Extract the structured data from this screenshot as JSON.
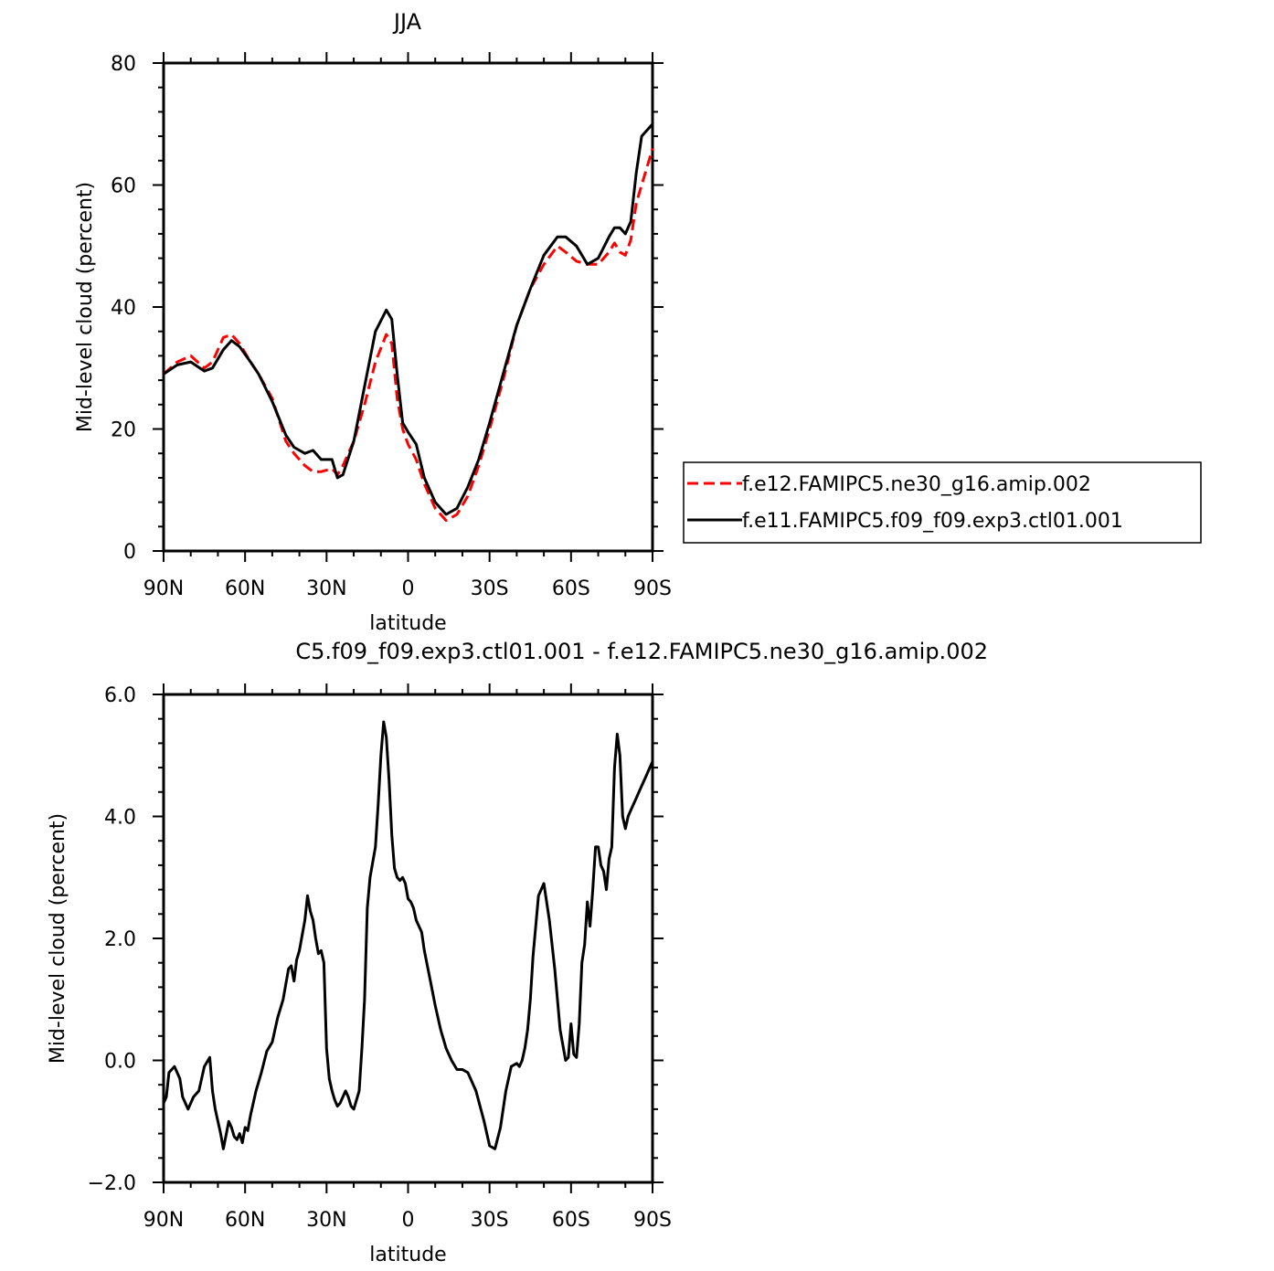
{
  "chart_data": [
    {
      "type": "line",
      "title": "JJA",
      "xlabel": "latitude",
      "ylabel": "Mid-level cloud (percent)",
      "xlim": [
        90,
        -90
      ],
      "ylim": [
        0,
        80
      ],
      "x_ticks": [
        90,
        60,
        30,
        0,
        -30,
        -60,
        -90
      ],
      "x_tick_labels": [
        "90N",
        "60N",
        "30N",
        "0",
        "30S",
        "60S",
        "90S"
      ],
      "y_ticks": [
        0,
        20,
        40,
        60,
        80
      ],
      "y_tick_labels": [
        "0",
        "20",
        "40",
        "60",
        "80"
      ],
      "legend_position": "right",
      "x": [
        90,
        85,
        80,
        75,
        72,
        68,
        65,
        62,
        58,
        55,
        50,
        45,
        42,
        38,
        35,
        32,
        28,
        26,
        24,
        20,
        16,
        12,
        8,
        6,
        4,
        2,
        0,
        -3,
        -6,
        -10,
        -14,
        -18,
        -22,
        -26,
        -30,
        -35,
        -40,
        -45,
        -50,
        -55,
        -58,
        -62,
        -66,
        -70,
        -74,
        -76,
        -78,
        -80,
        -82,
        -84,
        -86,
        -88,
        -90
      ],
      "series": [
        {
          "name": "f.e12.FAMIPC5.ne30_g16.amip.002",
          "color": "#ff0000",
          "dash": "dashed",
          "values": [
            29,
            31,
            32,
            30,
            31,
            35,
            35.5,
            34,
            31,
            29,
            25,
            18,
            16,
            14,
            13,
            13,
            13.5,
            12.5,
            14,
            18,
            24,
            31,
            35.5,
            34,
            25,
            20,
            17.5,
            15,
            11,
            7,
            5,
            6,
            9,
            14,
            20,
            28,
            37,
            43,
            47,
            50,
            49,
            47.5,
            47,
            47,
            49,
            50.5,
            49,
            48.5,
            51,
            57,
            60,
            63,
            66
          ]
        },
        {
          "name": "f.e11.FAMIPC5.f09_f09.exp3.ctl01.001",
          "color": "#000000",
          "dash": "solid",
          "values": [
            29,
            30.5,
            31,
            29.5,
            30,
            33,
            34.5,
            33.5,
            31,
            29,
            24.5,
            19,
            17,
            16,
            16.5,
            15,
            15,
            12,
            12.5,
            18,
            27,
            36,
            39.5,
            38,
            29,
            21,
            19.5,
            17.5,
            12,
            8,
            6,
            7,
            10.5,
            15,
            21,
            29,
            37,
            43,
            48.5,
            51.5,
            51.5,
            50,
            47,
            48,
            51.5,
            53,
            53,
            52,
            54,
            62,
            68,
            69,
            70
          ]
        }
      ]
    },
    {
      "type": "line",
      "title": "C5.f09_f09.exp3.ctl01.001 - f.e12.FAMIPC5.ne30_g16.amip.002",
      "xlabel": "latitude",
      "ylabel": "Mid-level cloud (percent)",
      "xlim": [
        90,
        -90
      ],
      "ylim": [
        -2,
        6
      ],
      "x_ticks": [
        90,
        60,
        30,
        0,
        -30,
        -60,
        -90
      ],
      "x_tick_labels": [
        "90N",
        "60N",
        "30N",
        "0",
        "30S",
        "60S",
        "90S"
      ],
      "y_ticks": [
        -2,
        0,
        2,
        4,
        6
      ],
      "y_tick_labels": [
        "−2.0",
        "0.0",
        "2.0",
        "4.0",
        "6.0"
      ],
      "x": [
        90,
        89,
        88,
        86,
        84,
        83,
        81,
        79,
        77,
        75,
        73,
        72,
        71,
        69,
        68,
        66,
        65,
        64,
        63,
        62,
        61,
        60,
        59,
        58,
        56,
        54,
        52,
        50,
        48,
        46,
        44,
        43,
        42,
        41,
        40,
        38,
        37,
        36,
        35,
        34,
        33,
        32,
        31,
        30,
        29,
        28,
        27,
        26,
        25,
        23,
        22,
        21,
        20,
        18,
        17,
        16,
        15,
        14,
        12,
        11,
        10,
        9,
        8,
        7,
        6,
        5,
        4,
        3,
        2,
        1,
        0,
        -1,
        -2,
        -3,
        -4,
        -5,
        -6,
        -8,
        -10,
        -12,
        -14,
        -16,
        -18,
        -20,
        -22,
        -25,
        -28,
        -30,
        -32,
        -34,
        -36,
        -38,
        -40,
        -41,
        -42,
        -43,
        -44,
        -45,
        -46,
        -48,
        -50,
        -52,
        -54,
        -56,
        -58,
        -59,
        -60,
        -61,
        -62,
        -63,
        -64,
        -65,
        -66,
        -67,
        -68,
        -69,
        -70,
        -71,
        -72,
        -73,
        -74,
        -75,
        -76,
        -77,
        -78,
        -79,
        -80,
        -81,
        -82,
        -83,
        -84,
        -85,
        -86,
        -87,
        -88,
        -89,
        -90
      ],
      "series": [
        {
          "name": "",
          "color": "#000000",
          "dash": "solid",
          "values": [
            -0.7,
            -0.6,
            -0.2,
            -0.1,
            -0.3,
            -0.6,
            -0.8,
            -0.6,
            -0.5,
            -0.1,
            0.05,
            -0.5,
            -0.8,
            -1.2,
            -1.45,
            -1.0,
            -1.1,
            -1.25,
            -1.3,
            -1.2,
            -1.35,
            -1.1,
            -1.15,
            -0.9,
            -0.5,
            -0.2,
            0.15,
            0.3,
            0.7,
            1.0,
            1.5,
            1.55,
            1.3,
            1.65,
            1.8,
            2.3,
            2.7,
            2.45,
            2.3,
            2.0,
            1.75,
            1.8,
            1.6,
            0.2,
            -0.3,
            -0.5,
            -0.65,
            -0.75,
            -0.7,
            -0.5,
            -0.6,
            -0.75,
            -0.8,
            -0.5,
            0.2,
            1.0,
            2.5,
            3.0,
            3.5,
            4.2,
            5.0,
            5.55,
            5.3,
            4.6,
            3.7,
            3.15,
            3.0,
            2.95,
            3.0,
            2.9,
            2.65,
            2.6,
            2.5,
            2.3,
            2.2,
            2.1,
            1.8,
            1.35,
            0.9,
            0.5,
            0.2,
            0.0,
            -0.15,
            -0.15,
            -0.2,
            -0.5,
            -1.0,
            -1.4,
            -1.45,
            -1.1,
            -0.5,
            -0.1,
            -0.05,
            -0.1,
            0.0,
            0.2,
            0.5,
            1.0,
            1.7,
            2.7,
            2.9,
            2.3,
            1.5,
            0.5,
            0.0,
            0.05,
            0.6,
            0.1,
            0.05,
            0.6,
            1.6,
            1.9,
            2.6,
            2.2,
            2.8,
            3.5,
            3.5,
            3.2,
            3.1,
            2.8,
            3.3,
            3.5,
            4.8,
            5.35,
            5.0,
            4.0,
            3.8,
            4.0,
            4.1,
            4.2,
            4.3,
            4.4,
            4.5,
            4.6,
            4.7,
            4.8,
            4.9
          ]
        }
      ]
    }
  ]
}
